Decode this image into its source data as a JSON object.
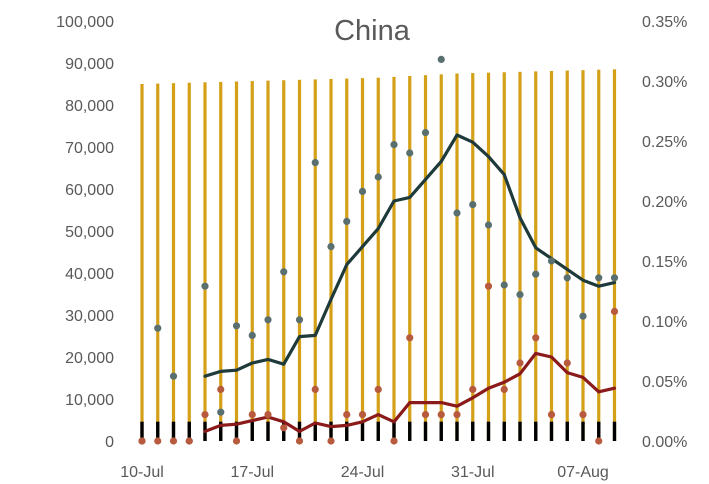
{
  "chart_data": {
    "type": "bar+line+scatter",
    "title": "China",
    "x_tick_labels": [
      "10-Jul",
      "17-Jul",
      "24-Jul",
      "31-Jul",
      "07-Aug"
    ],
    "x_tick_day_index": [
      0,
      7,
      14,
      21,
      28
    ],
    "left_axis": {
      "ticks": [
        "0",
        "10,000",
        "20,000",
        "30,000",
        "40,000",
        "50,000",
        "60,000",
        "70,000",
        "80,000",
        "90,000",
        "100,000"
      ],
      "range": [
        0,
        100000
      ]
    },
    "right_axis": {
      "ticks": [
        "0.00%",
        "0.05%",
        "0.10%",
        "0.15%",
        "0.20%",
        "0.25%",
        "0.30%",
        "0.35%"
      ],
      "range": [
        0,
        0.35
      ]
    },
    "dates": [
      "10-Jul",
      "11-Jul",
      "12-Jul",
      "13-Jul",
      "14-Jul",
      "15-Jul",
      "16-Jul",
      "17-Jul",
      "18-Jul",
      "19-Jul",
      "20-Jul",
      "21-Jul",
      "22-Jul",
      "23-Jul",
      "24-Jul",
      "25-Jul",
      "26-Jul",
      "27-Jul",
      "28-Jul",
      "29-Jul",
      "30-Jul",
      "31-Jul",
      "01-Aug",
      "02-Aug",
      "03-Aug",
      "04-Aug",
      "05-Aug",
      "06-Aug",
      "07-Aug",
      "08-Aug",
      "09-Aug"
    ],
    "series": [
      {
        "kind": "bar",
        "axis": "left",
        "color": "#d4a017",
        "values": [
          85000,
          85100,
          85200,
          85300,
          85400,
          85500,
          85600,
          85700,
          85800,
          85900,
          86000,
          86100,
          86200,
          86300,
          86400,
          86500,
          86700,
          86900,
          87100,
          87300,
          87500,
          87600,
          87700,
          87800,
          87900,
          88000,
          88100,
          88200,
          88300,
          88400,
          88500
        ]
      },
      {
        "kind": "bar",
        "axis": "left",
        "color": "#000000",
        "values": [
          4600,
          4600,
          4600,
          4600,
          4600,
          4600,
          4600,
          4600,
          4600,
          4600,
          4600,
          4600,
          4600,
          4600,
          4600,
          4600,
          4600,
          4600,
          4600,
          4600,
          4600,
          4600,
          4600,
          4600,
          4600,
          4600,
          4600,
          4600,
          4600,
          4600,
          4600
        ]
      },
      {
        "kind": "scatter",
        "axis": "right",
        "color": "#5a7070",
        "values": [
          0,
          0.094,
          0.054,
          0,
          0.129,
          0.024,
          0.096,
          0.088,
          0.101,
          0.141,
          0.101,
          0.232,
          0.162,
          0.183,
          0.208,
          0.22,
          0.247,
          0.24,
          0.257,
          0.318,
          0.19,
          0.197,
          0.18,
          0.13,
          0.122,
          0.139,
          0.15,
          0.136,
          0.104,
          0.136,
          0.136
        ]
      },
      {
        "kind": "line",
        "axis": "right",
        "color": "#1e3a3a",
        "values": [
          null,
          null,
          null,
          null,
          0.054,
          0.058,
          0.059,
          0.065,
          0.068,
          0.064,
          0.087,
          0.088,
          0.118,
          0.147,
          0.162,
          0.177,
          0.2,
          0.203,
          0.218,
          0.233,
          0.255,
          0.249,
          0.237,
          0.222,
          0.186,
          0.161,
          0.152,
          0.143,
          0.134,
          0.129,
          0.132
        ]
      },
      {
        "kind": "scatter",
        "axis": "right",
        "color": "#b85a3e",
        "values": [
          0,
          0,
          0,
          0,
          0.022,
          0.043,
          0,
          0.022,
          0.022,
          0.011,
          0,
          0.043,
          0,
          0.022,
          0.022,
          0.043,
          0,
          0.086,
          0.022,
          0.022,
          0.022,
          0.043,
          0.129,
          0.043,
          0.065,
          0.086,
          0.022,
          0.065,
          0.022,
          0,
          0.108
        ]
      },
      {
        "kind": "line",
        "axis": "right",
        "color": "#8b1a1a",
        "values": [
          null,
          null,
          null,
          null,
          0.008,
          0.013,
          0.014,
          0.017,
          0.02,
          0.016,
          0.008,
          0.015,
          0.012,
          0.013,
          0.016,
          0.022,
          0.016,
          0.032,
          0.032,
          0.032,
          0.029,
          0.036,
          0.044,
          0.049,
          0.056,
          0.073,
          0.07,
          0.057,
          0.053,
          0.041,
          0.044
        ]
      }
    ]
  }
}
